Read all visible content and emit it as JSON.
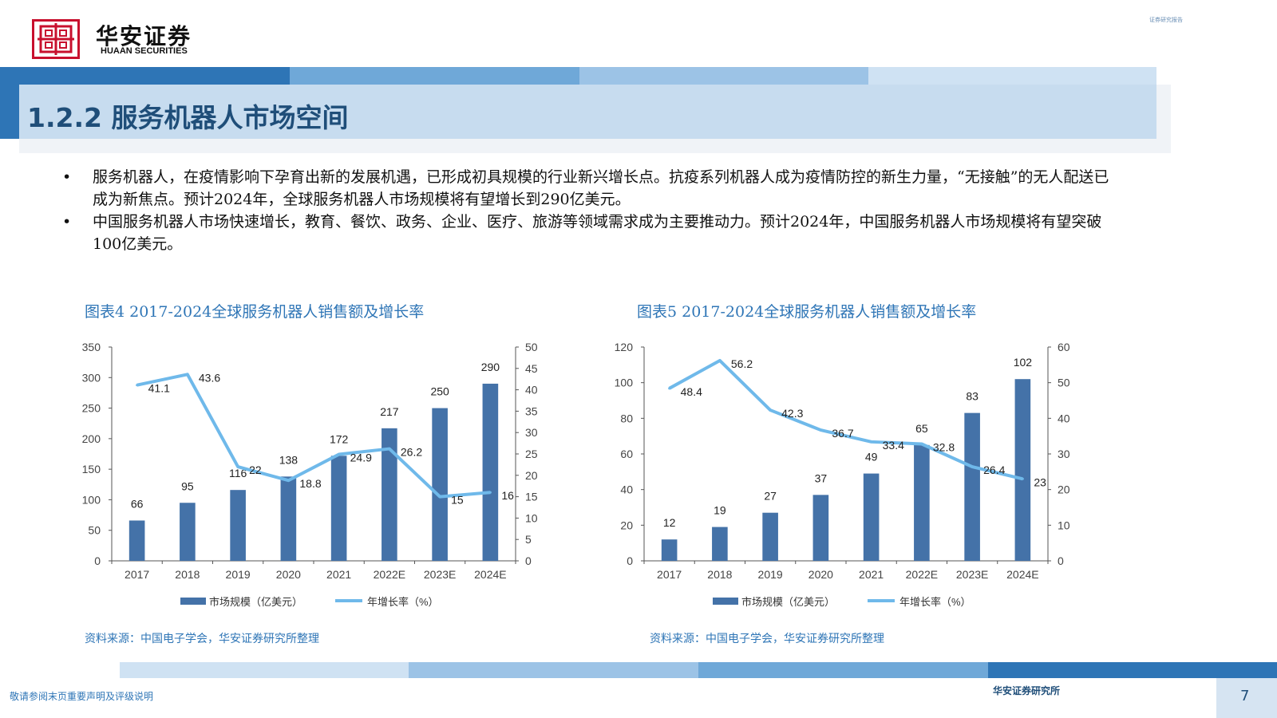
{
  "header": {
    "logo_cn": "华安证券",
    "logo_en": "HUAAN SECURITIES",
    "top_right": "证券研究报告"
  },
  "section": {
    "title": "1.2.2 服务机器人市场空间"
  },
  "bullets": [
    "服务机器人，在疫情影响下孕育出新的发展机遇，已形成初具规模的行业新兴增长点。抗疫系列机器人成为疫情防控的新生力量，“无接触”的无人配送已成为新焦点。预计2024年，全球服务机器人市场规模将有望增长到290亿美元。",
    "中国服务机器人市场快速增长，教育、餐饮、政务、企业、医疗、旅游等领域需求成为主要推动力。预计2024年，中国服务机器人市场规模将有望突破100亿美元。"
  ],
  "bullet_symbol": "•",
  "charts": {
    "left": {
      "title": "图表4 2017-2024全球服务机器人销售额及增长率",
      "source": "资料来源：中国电子学会，华安证券研究所整理"
    },
    "right": {
      "title": "图表5 2017-2024全球服务机器人销售额及增长率",
      "source": "资料来源：中国电子学会，华安证券研究所整理"
    }
  },
  "chart_data": [
    {
      "type": "bar",
      "categories": [
        "2017",
        "2018",
        "2019",
        "2020",
        "2021",
        "2022E",
        "2023E",
        "2024E"
      ],
      "series": [
        {
          "name": "市场规模（亿美元）",
          "type": "bar",
          "axis": "left",
          "values": [
            66,
            95,
            116,
            138,
            172,
            217,
            250,
            290
          ],
          "color": "#4472a8"
        },
        {
          "name": "年增长率（%）",
          "type": "line",
          "axis": "right",
          "values": [
            41.1,
            43.6,
            22,
            18.8,
            24.9,
            26.2,
            15,
            16
          ],
          "color": "#6fb9ea"
        }
      ],
      "ylim_left": [
        0,
        350
      ],
      "yticks_left": [
        0,
        50,
        100,
        150,
        200,
        250,
        300,
        350
      ],
      "ylim_right": [
        0,
        50
      ],
      "yticks_right": [
        0,
        5,
        10,
        15,
        20,
        25,
        30,
        35,
        40,
        45,
        50
      ],
      "legend": "bottom"
    },
    {
      "type": "bar",
      "categories": [
        "2017",
        "2018",
        "2019",
        "2020",
        "2021",
        "2022E",
        "2023E",
        "2024E"
      ],
      "series": [
        {
          "name": "市场规模（亿美元）",
          "type": "bar",
          "axis": "left",
          "values": [
            12,
            19,
            27,
            37,
            49,
            65,
            83,
            102
          ],
          "color": "#4472a8"
        },
        {
          "name": "年增长率（%）",
          "type": "line",
          "axis": "right",
          "values": [
            48.4,
            56.2,
            42.3,
            36.7,
            33.4,
            32.8,
            26.4,
            23
          ],
          "color": "#6fb9ea"
        }
      ],
      "ylim_left": [
        0,
        120
      ],
      "yticks_left": [
        0,
        20,
        40,
        60,
        80,
        100,
        120
      ],
      "ylim_right": [
        0,
        60
      ],
      "yticks_right": [
        0,
        10,
        20,
        30,
        40,
        50,
        60
      ],
      "legend": "bottom"
    }
  ],
  "footer": {
    "disclaimer": "敬请参阅末页重要声明及评级说明",
    "org": "华安证券研究所",
    "page": "7"
  }
}
